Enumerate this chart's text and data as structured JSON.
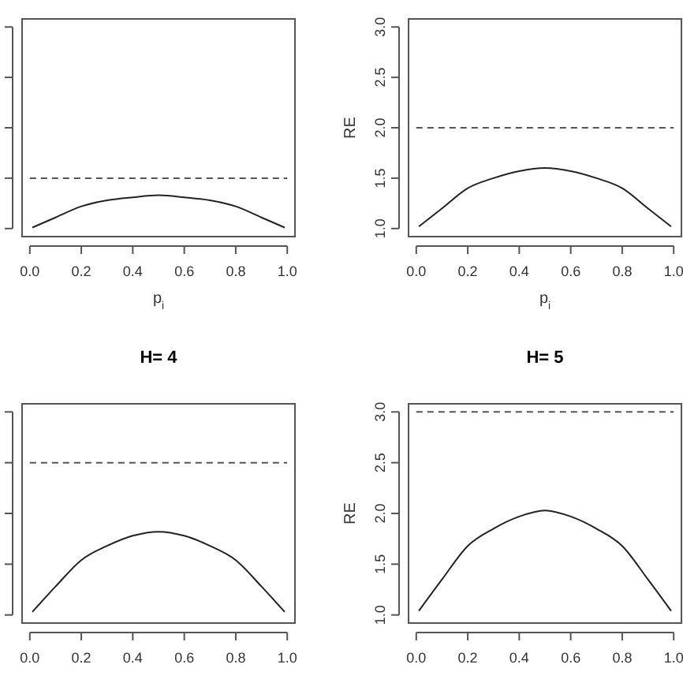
{
  "chart_data": [
    {
      "type": "line",
      "xlabel": "p$_{i}$",
      "x": [
        0.01,
        0.1,
        0.2,
        0.3,
        0.4,
        0.5,
        0.6,
        0.7,
        0.8,
        0.9,
        0.99
      ],
      "series": [
        {
          "color": "#222222",
          "values": [
            1.01,
            1.11,
            1.22,
            1.28,
            1.31,
            1.33,
            1.31,
            1.28,
            1.22,
            1.11,
            1.01
          ]
        }
      ],
      "ref_lines": [
        {
          "axis": "y",
          "value": 1.5,
          "color": "#555555",
          "line_style": "dashed"
        }
      ],
      "xlim": [
        -0.03,
        1.03
      ],
      "ylim": [
        0.92,
        3.08
      ],
      "xticks": [
        {
          "value": 0,
          "label": "0.0"
        },
        {
          "value": 0.2,
          "label": "0.2"
        },
        {
          "value": 0.4,
          "label": "0.4"
        },
        {
          "value": 0.6,
          "label": "0.6"
        },
        {
          "value": 0.8,
          "label": "0.8"
        },
        {
          "value": 1,
          "label": "1.0"
        }
      ],
      "yticks": [
        {
          "value": 1,
          "label": null
        },
        {
          "value": 1.5,
          "label": null
        },
        {
          "value": 2,
          "label": null
        },
        {
          "value": 2.5,
          "label": null
        },
        {
          "value": 3,
          "label": null
        }
      ],
      "tick_labels": "x",
      "grid": false,
      "marker": "none",
      "line_style": "solid"
    },
    {
      "type": "line",
      "xlabel": "p$_{i}$",
      "ylabel": "RE",
      "x": [
        0.01,
        0.1,
        0.2,
        0.3,
        0.4,
        0.5,
        0.6,
        0.7,
        0.8,
        0.9,
        0.99
      ],
      "series": [
        {
          "color": "#222222",
          "values": [
            1.02,
            1.2,
            1.4,
            1.5,
            1.57,
            1.6,
            1.57,
            1.5,
            1.4,
            1.2,
            1.02
          ]
        }
      ],
      "ref_lines": [
        {
          "axis": "y",
          "value": 2,
          "color": "#555555",
          "line_style": "dashed"
        }
      ],
      "xlim": [
        -0.03,
        1.03
      ],
      "ylim": [
        0.92,
        3.08
      ],
      "xticks": [
        {
          "value": 0,
          "label": "0.0"
        },
        {
          "value": 0.2,
          "label": "0.2"
        },
        {
          "value": 0.4,
          "label": "0.4"
        },
        {
          "value": 0.6,
          "label": "0.6"
        },
        {
          "value": 0.8,
          "label": "0.8"
        },
        {
          "value": 1,
          "label": "1.0"
        }
      ],
      "yticks": [
        {
          "value": 1,
          "label": "1.0"
        },
        {
          "value": 1.5,
          "label": "1.5"
        },
        {
          "value": 2,
          "label": "2.0"
        },
        {
          "value": 2.5,
          "label": "2.5"
        },
        {
          "value": 3,
          "label": "3.0"
        }
      ],
      "grid": false,
      "marker": "none",
      "line_style": "solid"
    },
    {
      "type": "line",
      "title": "H= 4",
      "x": [
        0.01,
        0.1,
        0.2,
        0.3,
        0.4,
        0.5,
        0.6,
        0.7,
        0.8,
        0.9,
        0.99
      ],
      "series": [
        {
          "color": "#222222",
          "values": [
            1.03,
            1.28,
            1.54,
            1.68,
            1.78,
            1.82,
            1.78,
            1.68,
            1.54,
            1.28,
            1.03
          ]
        }
      ],
      "ref_lines": [
        {
          "axis": "y",
          "value": 2.5,
          "color": "#555555",
          "line_style": "dashed"
        }
      ],
      "xlim": [
        -0.03,
        1.03
      ],
      "ylim": [
        0.92,
        3.08
      ],
      "xticks": [
        {
          "value": 0,
          "label": "0.0"
        },
        {
          "value": 0.2,
          "label": "0.2"
        },
        {
          "value": 0.4,
          "label": "0.4"
        },
        {
          "value": 0.6,
          "label": "0.6"
        },
        {
          "value": 0.8,
          "label": "0.8"
        },
        {
          "value": 1,
          "label": "1.0"
        }
      ],
      "yticks": [
        {
          "value": 1,
          "label": null
        },
        {
          "value": 1.5,
          "label": null
        },
        {
          "value": 2,
          "label": null
        },
        {
          "value": 2.5,
          "label": null
        },
        {
          "value": 3,
          "label": null
        }
      ],
      "tick_labels": "x",
      "grid": false,
      "marker": "none",
      "line_style": "solid"
    },
    {
      "type": "line",
      "title": "H= 5",
      "ylabel": "RE",
      "x": [
        0.01,
        0.1,
        0.2,
        0.3,
        0.4,
        0.5,
        0.6,
        0.7,
        0.8,
        0.9,
        0.99
      ],
      "series": [
        {
          "color": "#222222",
          "values": [
            1.04,
            1.35,
            1.68,
            1.85,
            1.97,
            2.03,
            1.97,
            1.85,
            1.68,
            1.35,
            1.04
          ]
        }
      ],
      "ref_lines": [
        {
          "axis": "y",
          "value": 3,
          "color": "#555555",
          "line_style": "dashed"
        }
      ],
      "xlim": [
        -0.03,
        1.03
      ],
      "ylim": [
        0.92,
        3.08
      ],
      "xticks": [
        {
          "value": 0,
          "label": "0.0"
        },
        {
          "value": 0.2,
          "label": "0.2"
        },
        {
          "value": 0.4,
          "label": "0.4"
        },
        {
          "value": 0.6,
          "label": "0.6"
        },
        {
          "value": 0.8,
          "label": "0.8"
        },
        {
          "value": 1,
          "label": "1.0"
        }
      ],
      "yticks": [
        {
          "value": 1,
          "label": "1.0"
        },
        {
          "value": 1.5,
          "label": "1.5"
        },
        {
          "value": 2,
          "label": "2.0"
        },
        {
          "value": 2.5,
          "label": "2.5"
        },
        {
          "value": 3,
          "label": "3.0"
        }
      ],
      "grid": false,
      "marker": "none",
      "line_style": "solid"
    }
  ]
}
